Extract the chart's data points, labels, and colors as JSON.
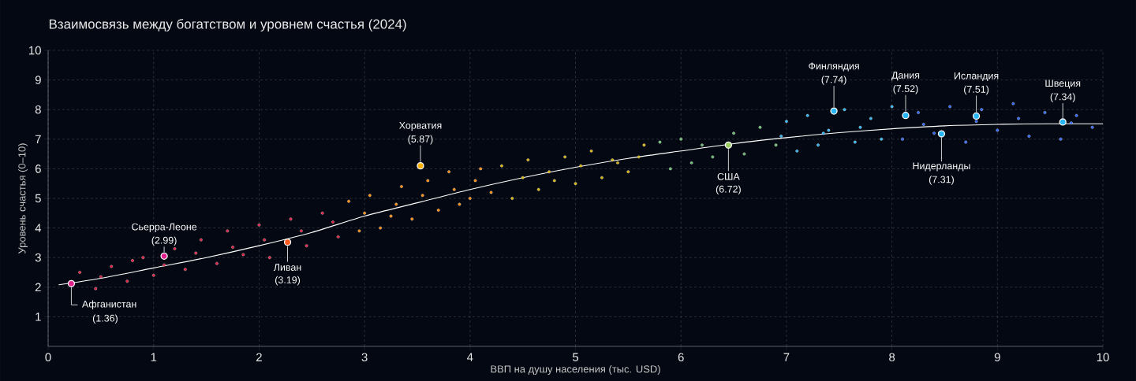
{
  "chart_data": {
    "type": "scatter",
    "title": "Взаимосвязь между богатством и уровнем счастья (2024)",
    "xlabel": "ВВП на душу населения (тыс. USD)",
    "ylabel": "Уровень счастья (0–10)",
    "xlim": [
      0,
      10
    ],
    "xticks": [
      0,
      1,
      2,
      3,
      4,
      5,
      6,
      7,
      8,
      9,
      10
    ],
    "ylim": [
      0,
      10
    ],
    "yticks": [
      1,
      2,
      3,
      4,
      5,
      6,
      7,
      8,
      9,
      10
    ],
    "grid": true,
    "series": [
      {
        "marker": "circle",
        "color": "#e5173f",
        "x": [
          0.3,
          0.45,
          0.6,
          0.75,
          0.9,
          1.0,
          1.2,
          1.3,
          1.45,
          1.6,
          1.7,
          1.85,
          2.0,
          2.1,
          2.3,
          2.45,
          2.6,
          2.75,
          0.5,
          0.8,
          1.1,
          1.4,
          1.75,
          2.05,
          2.4,
          2.7
        ],
        "values": [
          2.5,
          1.95,
          2.7,
          2.2,
          3.0,
          2.4,
          3.3,
          2.6,
          3.6,
          2.8,
          3.9,
          3.1,
          4.1,
          3.0,
          4.3,
          3.4,
          4.5,
          3.7,
          2.35,
          2.9,
          2.75,
          3.15,
          3.35,
          3.6,
          3.9,
          4.2
        ]
      },
      {
        "marker": "circle",
        "color": "#ff8a00",
        "x": [
          2.85,
          2.95,
          3.05,
          3.15,
          3.25,
          3.35,
          3.45,
          3.6,
          3.7,
          3.8,
          3.9,
          4.0,
          4.1,
          4.2,
          3.0,
          3.3,
          3.55,
          3.85,
          4.05
        ],
        "values": [
          4.9,
          3.9,
          5.1,
          4.0,
          4.4,
          5.4,
          4.3,
          5.6,
          4.6,
          5.9,
          4.8,
          5.0,
          6.0,
          5.2,
          4.5,
          4.8,
          5.1,
          5.3,
          5.6
        ]
      },
      {
        "marker": "circle",
        "color": "#d9b400",
        "x": [
          4.3,
          4.4,
          4.55,
          4.65,
          4.8,
          4.9,
          5.0,
          5.15,
          5.25,
          5.4,
          5.5,
          5.65,
          4.5,
          4.75,
          5.05,
          5.35,
          5.6
        ],
        "values": [
          6.1,
          5.0,
          6.3,
          5.3,
          5.6,
          6.4,
          5.5,
          6.6,
          5.7,
          6.2,
          5.9,
          6.8,
          5.7,
          5.9,
          6.1,
          6.3,
          6.4
        ]
      },
      {
        "marker": "circle",
        "color": "#66bb6a",
        "x": [
          5.8,
          5.9,
          6.0,
          6.1,
          6.2,
          6.3,
          6.5,
          6.6,
          6.75,
          6.9
        ],
        "values": [
          6.9,
          6.0,
          7.0,
          6.2,
          6.8,
          6.4,
          7.2,
          6.5,
          7.4,
          6.8
        ]
      },
      {
        "marker": "circle",
        "color": "#29b6f6",
        "x": [
          7.0,
          7.1,
          7.2,
          7.3,
          7.4,
          7.55,
          7.65,
          7.8,
          7.9,
          8.0,
          6.95,
          7.35,
          7.7
        ],
        "values": [
          7.6,
          6.6,
          7.8,
          6.8,
          7.3,
          8.0,
          6.9,
          7.7,
          7.0,
          8.1,
          7.1,
          7.2,
          7.4
        ]
      },
      {
        "marker": "circle",
        "color": "#2962ff",
        "x": [
          8.1,
          8.25,
          8.4,
          8.55,
          8.7,
          8.85,
          9.0,
          9.15,
          9.3,
          9.45,
          9.6,
          9.75,
          9.9,
          8.3,
          8.8,
          9.2,
          9.7
        ],
        "values": [
          7.0,
          7.9,
          7.2,
          8.1,
          6.9,
          8.0,
          7.3,
          8.2,
          7.1,
          7.9,
          7.0,
          7.8,
          7.4,
          7.5,
          7.6,
          7.7,
          7.55
        ]
      },
      {
        "type": "line",
        "marker": "none",
        "color": "#ffffff",
        "x": [
          0.1,
          0.5,
          1,
          1.5,
          2,
          2.5,
          3,
          3.5,
          4,
          4.5,
          5,
          5.5,
          6,
          6.5,
          7,
          7.5,
          8,
          8.5,
          9,
          9.5,
          10
        ],
        "values": [
          2.08,
          2.3,
          2.65,
          3.0,
          3.4,
          3.85,
          4.4,
          4.85,
          5.3,
          5.7,
          6.05,
          6.35,
          6.6,
          6.85,
          7.05,
          7.22,
          7.35,
          7.45,
          7.5,
          7.52,
          7.52
        ]
      },
      {
        "marker": "circle",
        "x": [
          0.22,
          1.1,
          2.27,
          3.53,
          6.45,
          7.45,
          8.13,
          8.8,
          8.47,
          9.62
        ],
        "values": [
          2.12,
          3.05,
          3.52,
          6.1,
          6.8,
          7.95,
          7.8,
          7.78,
          7.18,
          7.58
        ],
        "colors": [
          "#e0218a",
          "#e0218a",
          "#ff5a1f",
          "#ffb300",
          "#9ccc65",
          "#29b6f6",
          "#29b6f6",
          "#29b6f6",
          "#29b6f6",
          "#29b6f6"
        ]
      }
    ],
    "annotations": [
      {
        "text": "Афганистан",
        "x": 0.22,
        "y": 2.12
      },
      "(1.36)",
      "Сьерра-Леоне",
      {
        "text": "(2.99)",
        "x": 1.1,
        "y": 3.05
      },
      {
        "text": "Ливан",
        "x": 2.27,
        "y": 3.52
      },
      "(3.19)",
      "Хорватия",
      {
        "text": "(5.87)",
        "x": 3.53,
        "y": 6.1
      },
      {
        "text": "США",
        "x": 6.45,
        "y": 6.8
      },
      "(6.72)",
      "Финляндия",
      {
        "text": "(7.74)",
        "x": 7.45,
        "y": 7.95
      },
      "Дания",
      {
        "text": "(7.52)",
        "x": 8.13,
        "y": 7.8
      },
      "Исландия",
      {
        "text": "(7.51)",
        "x": 8.8,
        "y": 7.78
      },
      {
        "text": "Нидерланды",
        "x": 8.47,
        "y": 7.18
      },
      "(7.31)",
      "Швеция",
      {
        "text": "(7.34)",
        "x": 9.62,
        "y": 7.58
      }
    ]
  }
}
